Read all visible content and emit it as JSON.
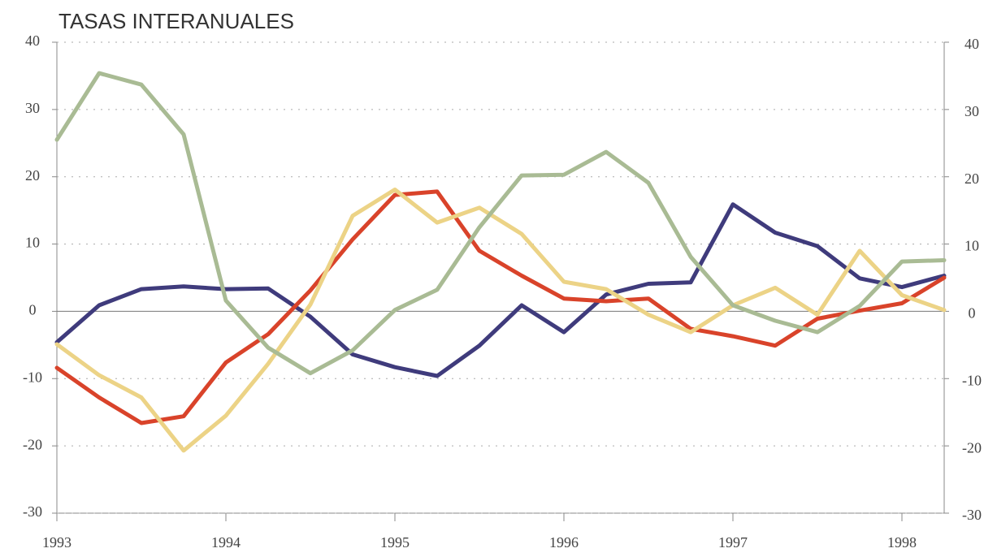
{
  "chart_data": {
    "type": "line",
    "title": "TASAS INTERANUALES",
    "x": [
      1993,
      1993.25,
      1993.5,
      1993.75,
      1994,
      1994.25,
      1994.5,
      1994.75,
      1995,
      1995.25,
      1995.5,
      1995.75,
      1996,
      1996.25,
      1996.5,
      1996.75,
      1997,
      1997.25,
      1997.5,
      1997.75,
      1998,
      1998.25
    ],
    "xlim": [
      1993,
      1998.25
    ],
    "xticks": [
      1993,
      1994,
      1995,
      1996,
      1997,
      1998
    ],
    "ylim": [
      -30,
      40
    ],
    "yticks": [
      -30,
      -20,
      -10,
      0,
      10,
      20,
      30,
      40
    ],
    "y2lim": [
      -30,
      40
    ],
    "y2ticks": [
      -30,
      -20,
      -10,
      0,
      10,
      20,
      30,
      40
    ],
    "grid": true,
    "series": [
      {
        "color": "#3f3b7c",
        "values": [
          -4.6,
          0.9,
          3.3,
          3.7,
          3.3,
          3.4,
          -0.8,
          -6.4,
          -8.3,
          -9.6,
          -5.1,
          0.9,
          -3.1,
          2.5,
          4.1,
          4.3,
          15.9,
          11.7,
          9.7,
          4.9,
          3.6,
          5.3
        ]
      },
      {
        "color": "#d9432a",
        "values": [
          -8.4,
          -12.8,
          -16.6,
          -15.6,
          -7.6,
          -3.4,
          3.1,
          10.7,
          17.3,
          17.8,
          9.0,
          5.3,
          1.9,
          1.5,
          1.9,
          -2.6,
          -3.7,
          -5.1,
          -1.1,
          0.1,
          1.2,
          5.0
        ]
      },
      {
        "color": "#ecd386",
        "values": [
          -4.9,
          -9.5,
          -12.8,
          -20.7,
          -15.5,
          -7.8,
          1.0,
          14.2,
          18.1,
          13.2,
          15.4,
          11.5,
          4.4,
          3.3,
          -0.5,
          -3.1,
          0.9,
          3.5,
          -0.5,
          9.0,
          2.4,
          0.2
        ]
      },
      {
        "color": "#a9bb94",
        "values": [
          25.5,
          35.4,
          33.7,
          26.3,
          1.6,
          -5.4,
          -9.2,
          -5.8,
          0.2,
          3.2,
          12.5,
          20.2,
          20.3,
          23.7,
          19.1,
          8.1,
          0.9,
          -1.4,
          -3.1,
          0.8,
          7.4,
          7.6
        ]
      }
    ]
  }
}
